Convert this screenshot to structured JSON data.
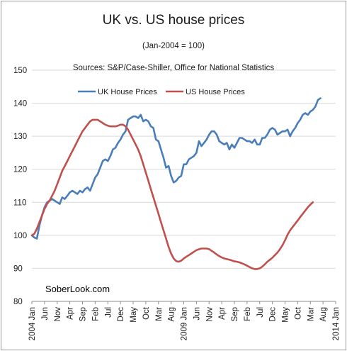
{
  "chart_data": {
    "type": "line",
    "title": "UK vs. US house prices",
    "subtitle": "(Jan-2004 = 100)",
    "sources": "Sources: S&P/Case-Shiller, Office for National Statistics",
    "watermark": "SoberLook.com",
    "xlabel": "",
    "ylabel": "",
    "ylim": [
      80,
      150
    ],
    "yticks": [
      80,
      90,
      100,
      110,
      120,
      130,
      140,
      150
    ],
    "xlim": [
      0,
      120
    ],
    "x_tick_positions": [
      0,
      5,
      10,
      15,
      20,
      25,
      30,
      35,
      40,
      45,
      50,
      55,
      60,
      65,
      70,
      75,
      80,
      85,
      90,
      95,
      100,
      105,
      110,
      115,
      120
    ],
    "x_tick_labels": [
      "2004 Jan",
      "Jun",
      "Nov",
      "Apr",
      "Sep",
      "Feb",
      "Jul",
      "Dec",
      "May",
      "Oct",
      "Mar",
      "Aug",
      "2009 Jan",
      "Jun",
      "Nov",
      "Apr",
      "Sep",
      "Feb",
      "Jul",
      "Dec",
      "May",
      "Oct",
      "Mar",
      "Aug",
      "2014 Jan"
    ],
    "x_unit": "months since Jan 2004",
    "grid": true,
    "legend_position": "top-center",
    "series": [
      {
        "name": "UK House Prices",
        "color": "#4a7ebb",
        "points": [
          [
            0,
            100
          ],
          [
            1,
            99.3
          ],
          [
            2,
            99
          ],
          [
            3,
            103
          ],
          [
            4,
            106
          ],
          [
            5,
            108.5
          ],
          [
            6,
            110
          ],
          [
            7,
            110.5
          ],
          [
            8,
            111
          ],
          [
            9,
            110.5
          ],
          [
            10,
            110
          ],
          [
            11,
            109.5
          ],
          [
            12,
            111.5
          ],
          [
            13,
            111
          ],
          [
            14,
            112
          ],
          [
            15,
            113
          ],
          [
            16,
            113.5
          ],
          [
            17,
            113
          ],
          [
            18,
            112.5
          ],
          [
            19,
            113.5
          ],
          [
            20,
            113
          ],
          [
            21,
            114
          ],
          [
            22,
            114.5
          ],
          [
            23,
            113.5
          ],
          [
            24,
            115.5
          ],
          [
            25,
            117.5
          ],
          [
            26,
            118.5
          ],
          [
            27,
            120.5
          ],
          [
            28,
            122.5
          ],
          [
            29,
            123
          ],
          [
            30,
            122.5
          ],
          [
            31,
            124
          ],
          [
            32,
            126
          ],
          [
            33,
            126.5
          ],
          [
            34,
            128
          ],
          [
            35,
            129
          ],
          [
            36,
            130.5
          ],
          [
            37,
            131.5
          ],
          [
            38,
            135
          ],
          [
            39,
            135.5
          ],
          [
            40,
            136
          ],
          [
            41,
            136
          ],
          [
            42,
            135.5
          ],
          [
            43,
            136.5
          ],
          [
            44,
            134.5
          ],
          [
            45,
            135
          ],
          [
            46,
            134.5
          ],
          [
            47,
            133
          ],
          [
            48,
            132.5
          ],
          [
            49,
            129
          ],
          [
            50,
            128.5
          ],
          [
            51,
            126
          ],
          [
            52,
            123.5
          ],
          [
            53,
            120.5
          ],
          [
            54,
            121
          ],
          [
            55,
            118
          ],
          [
            56,
            116
          ],
          [
            57,
            116.5
          ],
          [
            58,
            117.5
          ],
          [
            59,
            118
          ],
          [
            60,
            121.5
          ],
          [
            61,
            121.5
          ],
          [
            62,
            123
          ],
          [
            63,
            123.5
          ],
          [
            64,
            124
          ],
          [
            65,
            125
          ],
          [
            66,
            128.5
          ],
          [
            67,
            127
          ],
          [
            68,
            128
          ],
          [
            69,
            129
          ],
          [
            70,
            130.5
          ],
          [
            71,
            131.5
          ],
          [
            72,
            131.5
          ],
          [
            73,
            130.5
          ],
          [
            74,
            128.5
          ],
          [
            75,
            128
          ],
          [
            76,
            127.5
          ],
          [
            77,
            128
          ],
          [
            78,
            126
          ],
          [
            79,
            127.5
          ],
          [
            80,
            126.5
          ],
          [
            81,
            128
          ],
          [
            82,
            129.5
          ],
          [
            83,
            129.5
          ],
          [
            84,
            129
          ],
          [
            85,
            128.5
          ],
          [
            86,
            128.5
          ],
          [
            87,
            128
          ],
          [
            88,
            129
          ],
          [
            89,
            127.5
          ],
          [
            90,
            127.5
          ],
          [
            91,
            129.5
          ],
          [
            92,
            129.5
          ],
          [
            93,
            130.5
          ],
          [
            94,
            132
          ],
          [
            95,
            132.5
          ],
          [
            96,
            132
          ],
          [
            97,
            130.5
          ],
          [
            98,
            131
          ],
          [
            99,
            131.5
          ],
          [
            100,
            131.5
          ],
          [
            101,
            132
          ],
          [
            102,
            130
          ],
          [
            103,
            131.5
          ],
          [
            104,
            132.5
          ],
          [
            105,
            134
          ],
          [
            106,
            135
          ],
          [
            107,
            136.5
          ],
          [
            108,
            137
          ],
          [
            109,
            136.5
          ],
          [
            110,
            137.5
          ],
          [
            111,
            138
          ],
          [
            112,
            139
          ],
          [
            113,
            141
          ],
          [
            114,
            141.5
          ]
        ]
      },
      {
        "name": "US House Prices",
        "color": "#c0504d",
        "points": [
          [
            0,
            100
          ],
          [
            1,
            100.5
          ],
          [
            2,
            102
          ],
          [
            3,
            104
          ],
          [
            4,
            106
          ],
          [
            5,
            108
          ],
          [
            6,
            109.5
          ],
          [
            7,
            110.5
          ],
          [
            8,
            112
          ],
          [
            9,
            113.5
          ],
          [
            10,
            115.5
          ],
          [
            11,
            117.5
          ],
          [
            12,
            119.5
          ],
          [
            13,
            121
          ],
          [
            14,
            122.5
          ],
          [
            15,
            124
          ],
          [
            16,
            125.5
          ],
          [
            17,
            127
          ],
          [
            18,
            128.5
          ],
          [
            19,
            130
          ],
          [
            20,
            131.5
          ],
          [
            21,
            132.5
          ],
          [
            22,
            133.5
          ],
          [
            23,
            134.5
          ],
          [
            24,
            135
          ],
          [
            25,
            135
          ],
          [
            26,
            135
          ],
          [
            27,
            134.5
          ],
          [
            28,
            134
          ],
          [
            29,
            133.5
          ],
          [
            30,
            133.2
          ],
          [
            31,
            133
          ],
          [
            32,
            133
          ],
          [
            33,
            133
          ],
          [
            34,
            133.2
          ],
          [
            35,
            133.5
          ],
          [
            36,
            133.5
          ],
          [
            37,
            133
          ],
          [
            38,
            132
          ],
          [
            39,
            130.5
          ],
          [
            40,
            129
          ],
          [
            41,
            127.5
          ],
          [
            42,
            126
          ],
          [
            43,
            124
          ],
          [
            44,
            121.5
          ],
          [
            45,
            119
          ],
          [
            46,
            116.5
          ],
          [
            47,
            114
          ],
          [
            48,
            111.5
          ],
          [
            49,
            109
          ],
          [
            50,
            106.5
          ],
          [
            51,
            104
          ],
          [
            52,
            101.5
          ],
          [
            53,
            99
          ],
          [
            54,
            96.5
          ],
          [
            55,
            94.5
          ],
          [
            56,
            93
          ],
          [
            57,
            92.2
          ],
          [
            58,
            92
          ],
          [
            59,
            92.3
          ],
          [
            60,
            93
          ],
          [
            61,
            93.5
          ],
          [
            62,
            94
          ],
          [
            63,
            94.5
          ],
          [
            64,
            95
          ],
          [
            65,
            95.5
          ],
          [
            66,
            95.8
          ],
          [
            67,
            96
          ],
          [
            68,
            96
          ],
          [
            69,
            96
          ],
          [
            70,
            95.8
          ],
          [
            71,
            95.3
          ],
          [
            72,
            94.8
          ],
          [
            73,
            94.2
          ],
          [
            74,
            93.7
          ],
          [
            75,
            93.3
          ],
          [
            76,
            93
          ],
          [
            77,
            92.8
          ],
          [
            78,
            92.6
          ],
          [
            79,
            92.4
          ],
          [
            80,
            92.1
          ],
          [
            81,
            92
          ],
          [
            82,
            91.8
          ],
          [
            83,
            91.5
          ],
          [
            84,
            91.2
          ],
          [
            85,
            90.8
          ],
          [
            86,
            90.4
          ],
          [
            87,
            90
          ],
          [
            88,
            89.8
          ],
          [
            89,
            89.8
          ],
          [
            90,
            90
          ],
          [
            91,
            90.5
          ],
          [
            92,
            91.2
          ],
          [
            93,
            92
          ],
          [
            94,
            92.6
          ],
          [
            95,
            93.2
          ],
          [
            96,
            94
          ],
          [
            97,
            94.8
          ],
          [
            98,
            95.8
          ],
          [
            99,
            97
          ],
          [
            100,
            98.5
          ],
          [
            101,
            100.2
          ],
          [
            102,
            101.5
          ],
          [
            103,
            102.5
          ],
          [
            104,
            103.5
          ],
          [
            105,
            104.5
          ],
          [
            106,
            105.5
          ],
          [
            107,
            106.5
          ],
          [
            108,
            107.5
          ],
          [
            109,
            108.5
          ],
          [
            110,
            109.3
          ],
          [
            111,
            110
          ]
        ]
      }
    ]
  }
}
